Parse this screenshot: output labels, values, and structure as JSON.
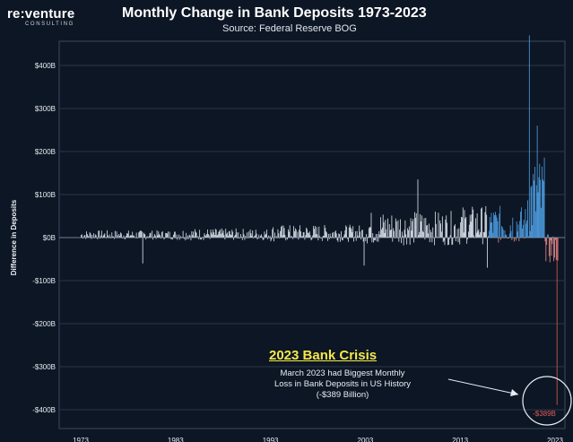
{
  "header": {
    "logo_text": "re:venture",
    "logo_sub": "CONSULTING",
    "title": "Monthly Change in Bank Deposits 1973-2023",
    "subtitle": "Source: Federal Reserve BOG"
  },
  "chart_data": {
    "type": "bar",
    "title": "Monthly Change in Bank Deposits 1973-2023",
    "subtitle": "Source: Federal Reserve BOG",
    "xlabel": "",
    "ylabel": "Difference in Deposits",
    "ylim": [
      -420,
      420
    ],
    "yticks": [
      "$400B",
      "$300B",
      "$200B",
      "$100B",
      "$0B",
      "-$100B",
      "-$200B",
      "-$300B",
      "-$400B"
    ],
    "ytick_values": [
      400,
      300,
      200,
      100,
      0,
      -100,
      -200,
      -300,
      -400
    ],
    "xticks": [
      "1973",
      "1983",
      "1993",
      "2003",
      "2013",
      "2023"
    ],
    "xtick_years": [
      1973,
      1983,
      1993,
      2003,
      2013,
      2023
    ],
    "grid": true,
    "colors": {
      "positive": "#dfe7f0",
      "positive_recent": "#4fa0e6",
      "negative_recent": "#e88f8f",
      "crash": "#e05a5a",
      "annotation_title": "#f4e84a"
    },
    "series": [
      {
        "values_approx_by_year": {
          "1973-1983": "mostly -10 to +25 ($B)",
          "1983-1993": "mostly -15 to +35 ($B)",
          "1993-2003": "mostly -25 to +60 ($B)",
          "2003-2013": "mostly -60 to +140 ($B)",
          "2013-2020": "mostly -70 to +130 ($B)",
          "2020-2022": "peaks up to ~$470B",
          "2022-2023": "declines to -$389B"
        },
        "notable_points": [
          {
            "x": 1979.5,
            "y": -60
          },
          {
            "x": 2002.8,
            "y": -65
          },
          {
            "x": 2008.5,
            "y": 135
          },
          {
            "x": 2015.8,
            "y": -70
          },
          {
            "x": 2020.25,
            "y": 470
          },
          {
            "x": 2021.1,
            "y": 260
          },
          {
            "x": 2023.17,
            "y": -389
          }
        ]
      }
    ],
    "annotation": {
      "title": "2023 Bank Crisis",
      "lines": [
        "March 2023 had Biggest Monthly",
        "Loss in Bank Deposits in US History",
        "(-$389 Billion)"
      ],
      "callout_label": "-$389B"
    }
  }
}
